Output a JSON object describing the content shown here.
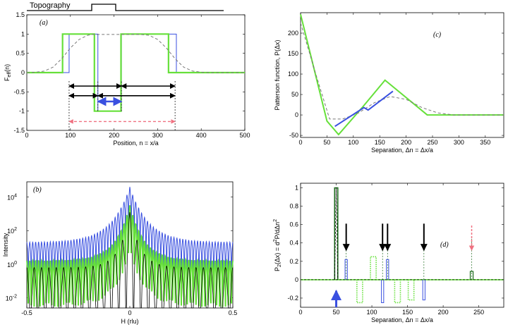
{
  "figure": {
    "topography_label": "Topography"
  },
  "colors": {
    "blue": "#3a50e0",
    "green": "#66e03a",
    "darkgreen": "#1d6b1d",
    "gray": "#777777",
    "black": "#000000",
    "pink": "#f07080"
  },
  "chart_data": [
    {
      "panel": "a",
      "type": "line",
      "panel_label": "(a)",
      "xlabel": "Position, n = x/a",
      "ylabel_main": "F",
      "ylabel_sub": "eff",
      "ylabel_tail": "(n)",
      "xlim": [
        0,
        500
      ],
      "ylim": [
        -1.5,
        1.5
      ],
      "xticks": [
        0,
        100,
        200,
        300,
        400,
        500
      ],
      "yticks": [
        -1.5,
        -1,
        -0.5,
        0,
        0.5,
        1,
        1.5
      ],
      "ytick_labels": [
        "-1.5",
        "-1",
        "-0.5",
        "0",
        "0.5",
        "1",
        "1.5"
      ],
      "series": [
        {
          "name": "blue step",
          "color": "blue",
          "dash": "",
          "width": 1,
          "x": [
            0,
            97,
            97,
            163,
            163,
            217,
            217,
            343,
            343,
            500
          ],
          "y": [
            0,
            0,
            1,
            1,
            -1,
            -1,
            1,
            1,
            0,
            0
          ]
        },
        {
          "name": "green step",
          "color": "green",
          "dash": "",
          "width": 2.2,
          "x": [
            0,
            82,
            82,
            155,
            155,
            216,
            216,
            325,
            325,
            500
          ],
          "y": [
            0,
            0,
            1,
            1,
            -1,
            -1,
            1,
            1,
            0,
            0
          ]
        },
        {
          "name": "gray smooth",
          "color": "gray",
          "dash": "4,3",
          "width": 1,
          "x": [
            0,
            20,
            40,
            60,
            80,
            100,
            120,
            140,
            150,
            160,
            180,
            200,
            215,
            225,
            240,
            260,
            280,
            300,
            320,
            340,
            360,
            380,
            400,
            420,
            440,
            460,
            480,
            500
          ],
          "y": [
            0,
            0.01,
            0.04,
            0.14,
            0.36,
            0.64,
            0.86,
            0.97,
            0.99,
            0.99,
            0.99,
            0.99,
            0.99,
            0.99,
            0.99,
            0.99,
            0.97,
            0.86,
            0.64,
            0.36,
            0.14,
            0.04,
            0.01,
            0,
            0,
            0,
            0,
            0
          ]
        }
      ],
      "vlines": [
        {
          "x": 97,
          "y0": -1.5,
          "y1": -0.2,
          "color": "black",
          "dash": "2,2"
        },
        {
          "x": 163,
          "y0": -1.0,
          "y1": -0.2,
          "color": "black",
          "dash": "2,2"
        },
        {
          "x": 217,
          "y0": -1.0,
          "y1": -0.2,
          "color": "black",
          "dash": "2,2"
        },
        {
          "x": 340,
          "y0": -1.5,
          "y1": -0.2,
          "color": "black",
          "dash": "2,2"
        }
      ],
      "arrows": [
        {
          "x0": 97,
          "x1": 163,
          "y": -0.6,
          "color": "black",
          "width": 1.6,
          "dash": ""
        },
        {
          "x0": 97,
          "x1": 217,
          "y": -0.35,
          "color": "black",
          "width": 1.6,
          "dash": ""
        },
        {
          "x0": 163,
          "x1": 340,
          "y": -0.6,
          "color": "black",
          "width": 1.6,
          "dash": ""
        },
        {
          "x0": 217,
          "x1": 340,
          "y": -0.35,
          "color": "black",
          "width": 1.6,
          "dash": ""
        },
        {
          "x0": 163,
          "x1": 217,
          "y": -0.75,
          "color": "blue",
          "width": 2.6,
          "dash": ""
        },
        {
          "x0": 97,
          "x1": 340,
          "y": -1.27,
          "color": "pink",
          "width": 1.3,
          "dash": "4,3"
        }
      ]
    },
    {
      "panel": "b",
      "type": "line",
      "panel_label": "(b)",
      "xlabel": "H (rlu)",
      "ylabel": "Intensity",
      "xlim": [
        -0.5,
        0.5
      ],
      "log_range": [
        -2.6,
        4.9
      ],
      "xticks": [
        -0.5,
        0,
        0.5
      ],
      "xtick_labels": [
        "-0.5",
        "0",
        "0.5"
      ],
      "yticks": [
        {
          "exp": -2,
          "base": "10",
          "sup": "-2"
        },
        {
          "exp": 0,
          "base": "10",
          "sup": "0"
        },
        {
          "exp": 2,
          "base": "10",
          "sup": "2"
        },
        {
          "exp": 4,
          "base": "10",
          "sup": "4"
        }
      ],
      "series": [
        {
          "name": "blue intensity",
          "color": "blue",
          "width": 1,
          "peak": 4.6,
          "baseline": 1.3,
          "decay": 0.09,
          "mod": 0.9,
          "freq": 70
        },
        {
          "name": "green intensity",
          "color": "green",
          "width": 2,
          "peak": 3.5,
          "baseline": 0.2,
          "decay": 0.07,
          "mod": 1.1,
          "freq": 70
        },
        {
          "name": "black intensity",
          "color": "black",
          "width": 0.8,
          "peak": 3.1,
          "baseline": -0.2,
          "decay": 0.05,
          "mod": 2.4,
          "freq": 28
        }
      ]
    },
    {
      "panel": "c",
      "type": "line",
      "panel_label": "(c)",
      "xlabel": "Separation, Δn = Δx/a",
      "ylabel": "Patterson function, P(Δx)",
      "xlim": [
        0,
        385
      ],
      "ylim": [
        -55,
        250
      ],
      "xticks": [
        0,
        50,
        100,
        150,
        200,
        250,
        300,
        350
      ],
      "yticks": [
        -50,
        0,
        50,
        100,
        150,
        200
      ],
      "series": [
        {
          "name": "green",
          "color": "green",
          "dash": "",
          "width": 2,
          "x": [
            0,
            50,
            72,
            118,
            160,
            240,
            385
          ],
          "y": [
            246,
            -15,
            -48,
            20,
            85,
            0,
            0
          ]
        },
        {
          "name": "gray dashed",
          "color": "gray",
          "dash": "4,3",
          "width": 1,
          "x": [
            0,
            30,
            55,
            80,
            110,
            140,
            170,
            200,
            230,
            260,
            290,
            320,
            385
          ],
          "y": [
            225,
            95,
            -10,
            -10,
            5,
            30,
            45,
            38,
            18,
            5,
            0,
            0,
            0
          ]
        },
        {
          "name": "blue",
          "color": "blue",
          "dash": "",
          "width": 2,
          "x": [
            65,
            120,
            128,
            175
          ],
          "y": [
            -28,
            18,
            12,
            58
          ]
        }
      ]
    },
    {
      "panel": "d",
      "type": "line",
      "panel_label": "(d)",
      "xlabel": "Separation, Δn = Δx/a",
      "ylabel_parts": [
        "P",
        "2",
        "(Δx) = d",
        "2",
        "P/dΔn",
        "2"
      ],
      "xlim": [
        0,
        285
      ],
      "ylim": [
        -0.3,
        1.05
      ],
      "xticks": [
        0,
        50,
        100,
        150,
        200,
        250
      ],
      "yticks": [
        -0.2,
        0,
        0.2,
        0.4,
        0.6,
        0.8,
        1
      ],
      "spikes": [
        {
          "x": 50,
          "h": 1.0,
          "w": 2.2,
          "color": "darkgreen",
          "dash": "",
          "lw": 1.6
        },
        {
          "x": 64,
          "h": 0.22,
          "w": 1.6,
          "color": "blue",
          "dash": "",
          "lw": 1
        },
        {
          "x": 83,
          "h": -0.25,
          "w": 4,
          "color": "green",
          "dash": "1.5,1.5",
          "lw": 1.6
        },
        {
          "x": 102,
          "h": 0.25,
          "w": 4,
          "color": "green",
          "dash": "1.5,1.5",
          "lw": 1.6
        },
        {
          "x": 115,
          "h": -0.25,
          "w": 1.6,
          "color": "blue",
          "dash": "",
          "lw": 1
        },
        {
          "x": 122,
          "h": 0.22,
          "w": 1.6,
          "color": "blue",
          "dash": "",
          "lw": 1
        },
        {
          "x": 136,
          "h": -0.25,
          "w": 4,
          "color": "green",
          "dash": "1.5,1.5",
          "lw": 1.6
        },
        {
          "x": 155,
          "h": -0.22,
          "w": 4,
          "color": "green",
          "dash": "1.5,1.5",
          "lw": 1.6
        },
        {
          "x": 173,
          "h": -0.22,
          "w": 1.6,
          "color": "blue",
          "dash": "",
          "lw": 1
        },
        {
          "x": 240,
          "h": 0.09,
          "w": 2,
          "color": "darkgreen",
          "dash": "",
          "lw": 1.2
        }
      ],
      "vlines": [
        {
          "x": 64,
          "y0": 0,
          "y1": 0.45,
          "color": "darkgreen",
          "dash": "2,2"
        },
        {
          "x": 115,
          "y0": 0,
          "y1": 0.45,
          "color": "darkgreen",
          "dash": "2,2"
        },
        {
          "x": 122,
          "y0": 0,
          "y1": 0.45,
          "color": "darkgreen",
          "dash": "2,2"
        },
        {
          "x": 173,
          "y0": 0,
          "y1": 0.45,
          "color": "darkgreen",
          "dash": "2,2"
        },
        {
          "x": 240,
          "y0": 0,
          "y1": 0.45,
          "color": "darkgreen",
          "dash": "2,2"
        }
      ],
      "arrows": [
        {
          "x": 64,
          "y0": 0.61,
          "y1": 0.32,
          "color": "black",
          "dash": "",
          "width": 2
        },
        {
          "x": 115,
          "y0": 0.61,
          "y1": 0.32,
          "color": "black",
          "dash": "",
          "width": 2
        },
        {
          "x": 122,
          "y0": 0.61,
          "y1": 0.32,
          "color": "black",
          "dash": "",
          "width": 2
        },
        {
          "x": 173,
          "y0": 0.61,
          "y1": 0.32,
          "color": "black",
          "dash": "",
          "width": 2
        },
        {
          "x": 240,
          "y0": 0.59,
          "y1": 0.32,
          "color": "pink",
          "dash": "3,2",
          "width": 1.5
        },
        {
          "x": 50,
          "y0": -0.3,
          "y1": -0.12,
          "color": "blue",
          "dash": "",
          "width": 3
        }
      ]
    }
  ]
}
